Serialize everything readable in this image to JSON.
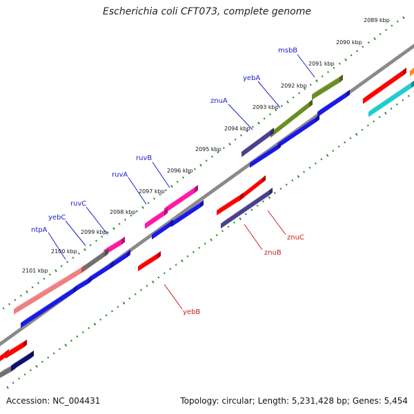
{
  "header": {
    "title": "Escherichia coli CFT073, complete genome"
  },
  "footer": {
    "accession": "Accession: NC_004431",
    "stats": "Topology: circular; Length: 5,231,428 bp; Genes: 5,454"
  },
  "colors": {
    "backbone": "#8a8a8a",
    "tick": "#2e8b2e",
    "forward_label": "#1a1acc",
    "reverse_label": "#cc1a1a",
    "cds_blue": "#1a1ae6",
    "red": "#ff0000",
    "olive": "#6b8e23",
    "slate": "#4b3f8f",
    "magenta": "#ff1aa3",
    "gray": "#707070",
    "salmon": "#f08080",
    "cyan": "#22cccc",
    "navy": "#101070",
    "orange": "#ff8c1a"
  },
  "scale_labels": [
    "2089 kbp",
    "2090 kbp",
    "2091 kbp",
    "2092 kbp",
    "2093 kbp",
    "2094 kbp",
    "2095 kbp",
    "2096 kbp",
    "2097 kbp",
    "2098 kbp",
    "2099 kbp",
    "2100 kbp",
    "2101 kbp"
  ],
  "forward_genes": [
    "msbB",
    "yebA",
    "znuA",
    "ruvB",
    "ruvA",
    "ruvC",
    "yebC",
    "ntpA"
  ],
  "reverse_genes": [
    "znuC",
    "znuB",
    "yebB"
  ]
}
